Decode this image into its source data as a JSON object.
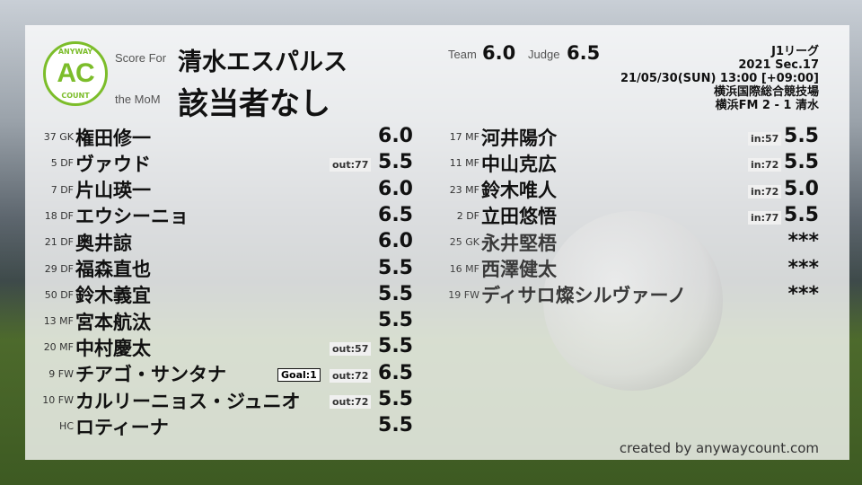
{
  "header": {
    "score_for_label": "Score For",
    "team": "清水エスパルス",
    "mom_label": "the MoM",
    "mom": "該当者なし",
    "team_label": "Team",
    "team_score": "6.0",
    "judge_label": "Judge",
    "judge_score": "6.5"
  },
  "logo": {
    "top": "ANYWAY",
    "mid": "AC",
    "bottom": "COUNT",
    "color": "#7cbd2a"
  },
  "match": {
    "league": "J1リーグ",
    "section": "2021 Sec.17",
    "datetime": "21/05/30(SUN) 13:00 [+09:00]",
    "venue": "横浜国際総合競技場",
    "result": "横浜FM 2 - 1 清水"
  },
  "left_players": [
    {
      "num": "37 GK",
      "name": "権田修一",
      "score": "6.0"
    },
    {
      "num": "5 DF",
      "name": "ヴァウド",
      "sub": "out:77",
      "score": "5.5"
    },
    {
      "num": "7 DF",
      "name": "片山瑛一",
      "score": "6.0"
    },
    {
      "num": "18 DF",
      "name": "エウシーニョ",
      "score": "6.5"
    },
    {
      "num": "21 DF",
      "name": "奥井諒",
      "score": "6.0"
    },
    {
      "num": "29 DF",
      "name": "福森直也",
      "score": "5.5"
    },
    {
      "num": "50 DF",
      "name": "鈴木義宜",
      "score": "5.5"
    },
    {
      "num": "13 MF",
      "name": "宮本航汰",
      "score": "5.5"
    },
    {
      "num": "20 MF",
      "name": "中村慶太",
      "sub": "out:57",
      "score": "5.5"
    },
    {
      "num": "9 FW",
      "name": "チアゴ・サンタナ",
      "goal": "Goal:1",
      "sub": "out:72",
      "score": "6.5"
    },
    {
      "num": "10 FW",
      "name": "カルリーニョス・ジュニオ",
      "sub": "out:72",
      "score": "5.5"
    },
    {
      "num": "HC",
      "name": "ロティーナ",
      "score": "5.5"
    }
  ],
  "right_players": [
    {
      "num": "17 MF",
      "name": "河井陽介",
      "sub": "in:57",
      "score": "5.5"
    },
    {
      "num": "11 MF",
      "name": "中山克広",
      "sub": "in:72",
      "score": "5.5"
    },
    {
      "num": "23 MF",
      "name": "鈴木唯人",
      "sub": "in:72",
      "score": "5.0"
    },
    {
      "num": "2 DF",
      "name": "立田悠悟",
      "sub": "in:77",
      "score": "5.5"
    },
    {
      "num": "25 GK",
      "name": "永井堅梧",
      "score": "***",
      "unused": true
    },
    {
      "num": "16 MF",
      "name": "西澤健太",
      "score": "***",
      "unused": true
    },
    {
      "num": "19 FW",
      "name": "ディサロ燦シルヴァーノ",
      "score": "***",
      "unused": true
    }
  ],
  "credit": "created by anywaycount.com"
}
